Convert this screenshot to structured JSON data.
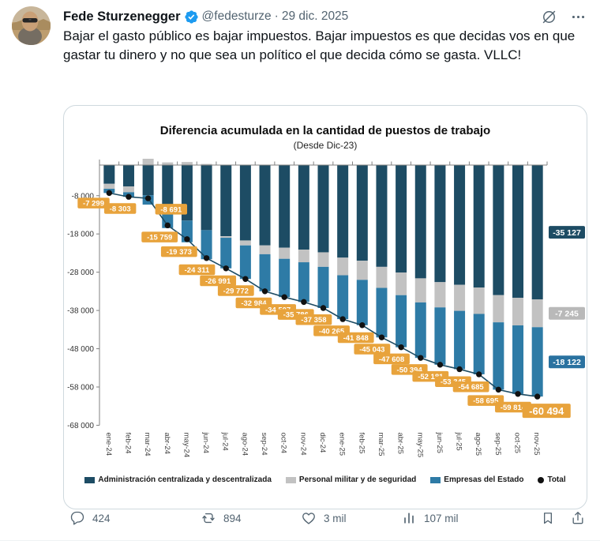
{
  "tweet": {
    "author": "Fede Sturzenegger",
    "handle": "@fedesturze",
    "separator": "·",
    "date": "29 dic. 2025",
    "text": "Bajar el gasto público es bajar impuestos. Bajar impuestos es que decidas vos en que gastar tu dinero y no que sea un político el que decida cómo se gasta. VLLC!"
  },
  "actions": {
    "reply_count": "424",
    "repost_count": "894",
    "like_count": "3 mil",
    "view_count": "107 mil"
  },
  "colors": {
    "accent_blue": "#1d9bf0",
    "icon_gray": "#536471",
    "text_dark": "#0f1419"
  },
  "chart_data": {
    "type": "bar",
    "stacked": true,
    "title": "Diferencia acumulada en la cantidad de puestos de trabajo",
    "subtitle": "(Desde Dic-23)",
    "categories": [
      "ene-24",
      "feb-24",
      "mar-24",
      "abr-24",
      "may-24",
      "jun-24",
      "jul-24",
      "ago-24",
      "sep-24",
      "oct-24",
      "nov-24",
      "dic-24",
      "ene-25",
      "feb-25",
      "mar-25",
      "abr-25",
      "may-25",
      "jun-25",
      "jul-25",
      "ago-25",
      "sep-25",
      "oct-25",
      "nov-25"
    ],
    "series": [
      {
        "name": "Administración centralizada y descentralizada",
        "color": "#1d4c64",
        "values": [
          -4900,
          -5600,
          -7900,
          -12000,
          -14500,
          -17000,
          -18600,
          -19700,
          -21000,
          -21600,
          -22100,
          -22800,
          -24200,
          -25000,
          -26600,
          -28100,
          -29600,
          -30600,
          -31300,
          -32000,
          -34000,
          -34700,
          -35127
        ]
      },
      {
        "name": "Personal militar y de seguridad",
        "color": "#c2c2c2",
        "values": [
          -1300,
          -1500,
          1650,
          700,
          800,
          300,
          -400,
          -1300,
          -2300,
          -2900,
          -3300,
          -3800,
          -4600,
          -5000,
          -5500,
          -5900,
          -6300,
          -6600,
          -6800,
          -6900,
          -7100,
          -7200,
          -7245
        ]
      },
      {
        "name": "Empresas del Estado",
        "color": "#2e7ba6",
        "values": [
          -1099,
          -1203,
          -2441,
          -4459,
          -5673,
          -7611,
          -7991,
          -8772,
          -9684,
          -10007,
          -10386,
          -10758,
          -11465,
          -11848,
          -12943,
          -13608,
          -14494,
          -14981,
          -15245,
          -15785,
          -17595,
          -17914,
          -18122
        ]
      }
    ],
    "total": {
      "name": "Total",
      "values": [
        -7299,
        -8303,
        -8691,
        -15759,
        -19373,
        -24311,
        -26991,
        -29772,
        -32984,
        -34507,
        -35786,
        -37358,
        -40265,
        -41848,
        -45043,
        -47608,
        -50394,
        -52181,
        -53345,
        -54685,
        -58695,
        -59814,
        -60494
      ],
      "labels": [
        "-7 299",
        "-8 303",
        "-8 691",
        "-15 759",
        "-19 373",
        "-24 311",
        "-26 991",
        "-29 772",
        "-32 984",
        "-34 507",
        "-35 786",
        "-37 358",
        "-40 265",
        "-41 848",
        "-45 043",
        "-47 608",
        "-50 394",
        "-52 181",
        "-53 345",
        "-54 685",
        "-58 695",
        "-59 814",
        "-60 494"
      ],
      "label_bg": "#e8a33c",
      "label_text_color": "#ffffff",
      "line_color": "#1d4c64",
      "dot_color": "#111111"
    },
    "end_labels": [
      {
        "text": "-35 127",
        "bg": "#1d4c64"
      },
      {
        "text": "-7 245",
        "bg": "#b9b9b9"
      },
      {
        "text": "-18 122",
        "bg": "#2a72a0"
      }
    ],
    "yticks": [
      {
        "v": -8000,
        "label": "-8 000"
      },
      {
        "v": -18000,
        "label": "-18 000"
      },
      {
        "v": -28000,
        "label": "-28 000"
      },
      {
        "v": -38000,
        "label": "-38 000"
      },
      {
        "v": -48000,
        "label": "-48 000"
      },
      {
        "v": -58000,
        "label": "-58 000"
      },
      {
        "v": -68000,
        "label": "-68 000"
      }
    ],
    "ylim": [
      -68000,
      2500
    ],
    "grid": false,
    "legend_position": "bottom"
  }
}
